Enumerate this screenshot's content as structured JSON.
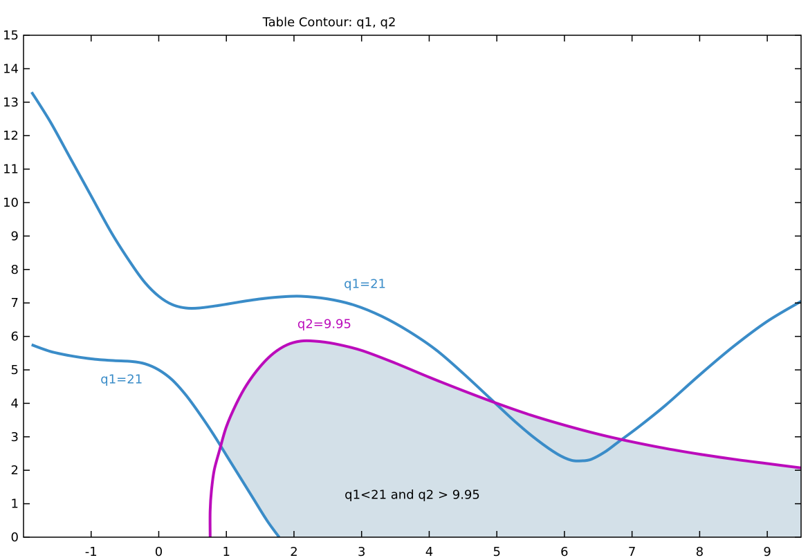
{
  "chart_data": {
    "type": "contour",
    "title": "Table Contour: q1, q2",
    "xlabel": "",
    "ylabel": "",
    "xlim": [
      -2.0,
      9.5
    ],
    "ylim": [
      0,
      15
    ],
    "x_ticks": [
      -1,
      0,
      1,
      2,
      3,
      4,
      5,
      6,
      7,
      8,
      9
    ],
    "y_ticks": [
      0,
      1,
      2,
      3,
      4,
      5,
      6,
      7,
      8,
      9,
      10,
      11,
      12,
      13,
      14,
      15
    ],
    "grid": false,
    "colors": {
      "q1_contour": "#3a8cc8",
      "q2_contour": "#bb0cbb",
      "region_fill": "#d3e0e8",
      "frame": "#000000"
    },
    "series": [
      {
        "name": "q1=21",
        "x": [
          -1.88,
          -1.6,
          -1.3,
          -1.0,
          -0.7,
          -0.4,
          -0.2,
          0.0,
          0.2,
          0.4,
          0.6,
          0.9,
          1.2,
          1.5,
          1.8,
          2.1,
          2.5,
          2.9,
          3.3,
          3.7,
          4.1,
          4.5,
          4.9,
          5.3,
          5.6,
          5.9,
          6.1,
          6.25,
          6.4,
          6.6,
          6.8,
          7.1,
          7.5,
          8.0,
          8.5,
          9.0,
          9.5
        ],
        "y": [
          13.3,
          12.4,
          11.3,
          10.2,
          9.1,
          8.15,
          7.6,
          7.2,
          6.95,
          6.85,
          6.85,
          6.93,
          7.03,
          7.12,
          7.18,
          7.2,
          7.12,
          6.93,
          6.6,
          6.15,
          5.6,
          4.9,
          4.15,
          3.4,
          2.9,
          2.48,
          2.3,
          2.28,
          2.33,
          2.55,
          2.85,
          3.3,
          3.95,
          4.85,
          5.7,
          6.45,
          7.05
        ]
      },
      {
        "name": "q1=21",
        "x": [
          -1.88,
          -1.6,
          -1.3,
          -1.0,
          -0.7,
          -0.4,
          -0.2,
          0.0,
          0.2,
          0.4,
          0.6,
          0.8,
          1.0,
          1.2,
          1.4,
          1.6,
          1.78
        ],
        "y": [
          5.75,
          5.55,
          5.42,
          5.33,
          5.28,
          5.25,
          5.18,
          5.0,
          4.7,
          4.25,
          3.7,
          3.1,
          2.45,
          1.8,
          1.15,
          0.5,
          0.0
        ]
      },
      {
        "name": "q2=9.95",
        "x": [
          0.76,
          0.76,
          0.78,
          0.82,
          0.9,
          1.0,
          1.15,
          1.3,
          1.5,
          1.7,
          1.9,
          2.1,
          2.3,
          2.6,
          3.0,
          3.5,
          4.0,
          4.5,
          5.0,
          5.5,
          6.0,
          6.5,
          7.0,
          7.5,
          8.0,
          8.5,
          9.0,
          9.5
        ],
        "y": [
          0.0,
          0.8,
          1.4,
          2.0,
          2.6,
          3.3,
          4.0,
          4.55,
          5.1,
          5.5,
          5.75,
          5.86,
          5.86,
          5.78,
          5.58,
          5.2,
          4.78,
          4.38,
          4.0,
          3.65,
          3.35,
          3.08,
          2.85,
          2.65,
          2.48,
          2.33,
          2.2,
          2.07
        ]
      }
    ],
    "region": {
      "label": "q1<21 and q2 > 9.95",
      "description_bounds": "between q2=9.95 contour (top) and lower q1=21 contour (left), down to y=0"
    },
    "annotations": [
      {
        "text": "q1=21",
        "x": 3.05,
        "y": 7.45,
        "color": "#3a8cc8"
      },
      {
        "text": "q1=21",
        "x": -0.55,
        "y": 4.6,
        "color": "#3a8cc8"
      },
      {
        "text": "q2=9.95",
        "x": 2.45,
        "y": 6.25,
        "color": "#bb0cbb"
      },
      {
        "text": "q1<21 and q2 > 9.95",
        "x": 3.75,
        "y": 1.15,
        "color": "#000000"
      }
    ]
  }
}
